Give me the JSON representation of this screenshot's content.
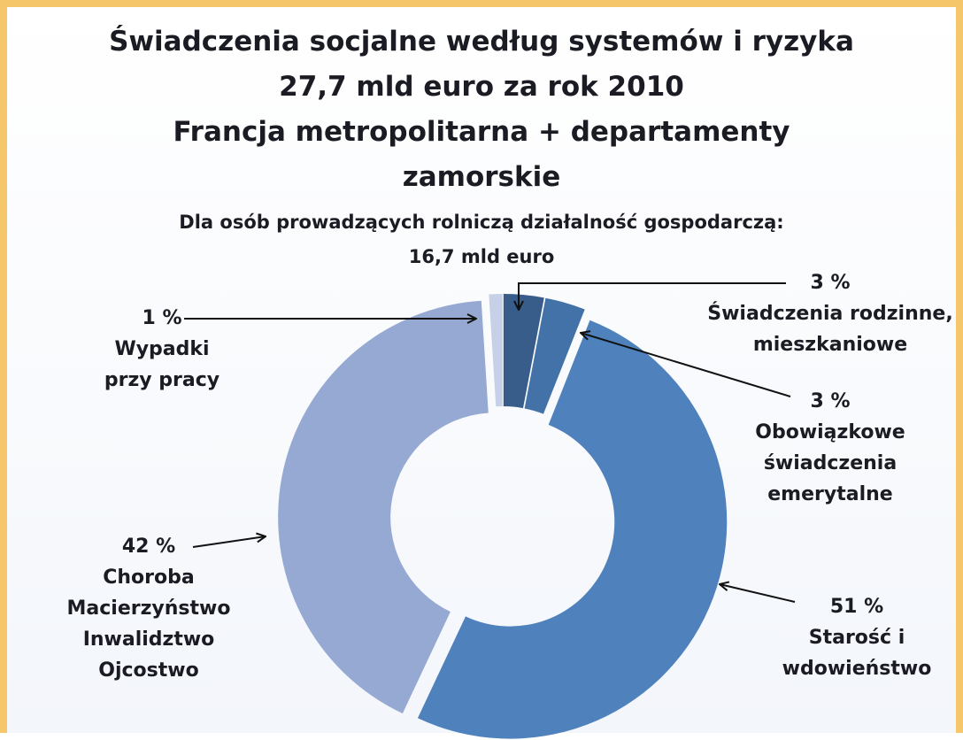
{
  "chart_data": {
    "type": "donut",
    "title": "Świadczenia socjalne według systemów i ryzyka\n27,7 mld euro za rok 2010\nFrancja metropolitarna + departamenty\nzamorskie",
    "subtitle": "Dla osób prowadzących rolniczą działalność gospodarczą:\n16,7 mld euro",
    "categories": [
      "Świadczenia rodzinne,\nmieszkaniowe",
      "Obowiązkowe\nświadczenia\nemerytalne",
      "Starość i\nwdowieństwo",
      "Choroba\nMacierzyństwo\nInwalidztwo\nOjcostwo",
      "Wypadki\nprzy pracy"
    ],
    "values": [
      3,
      3,
      51,
      42,
      1
    ],
    "value_labels": [
      "3 %",
      "3 %",
      "51 %",
      "42 %",
      "1 %"
    ],
    "colors": [
      "#385d8a",
      "#4372a8",
      "#4f81bd",
      "#95a9d2",
      "#c6d1e8"
    ]
  }
}
